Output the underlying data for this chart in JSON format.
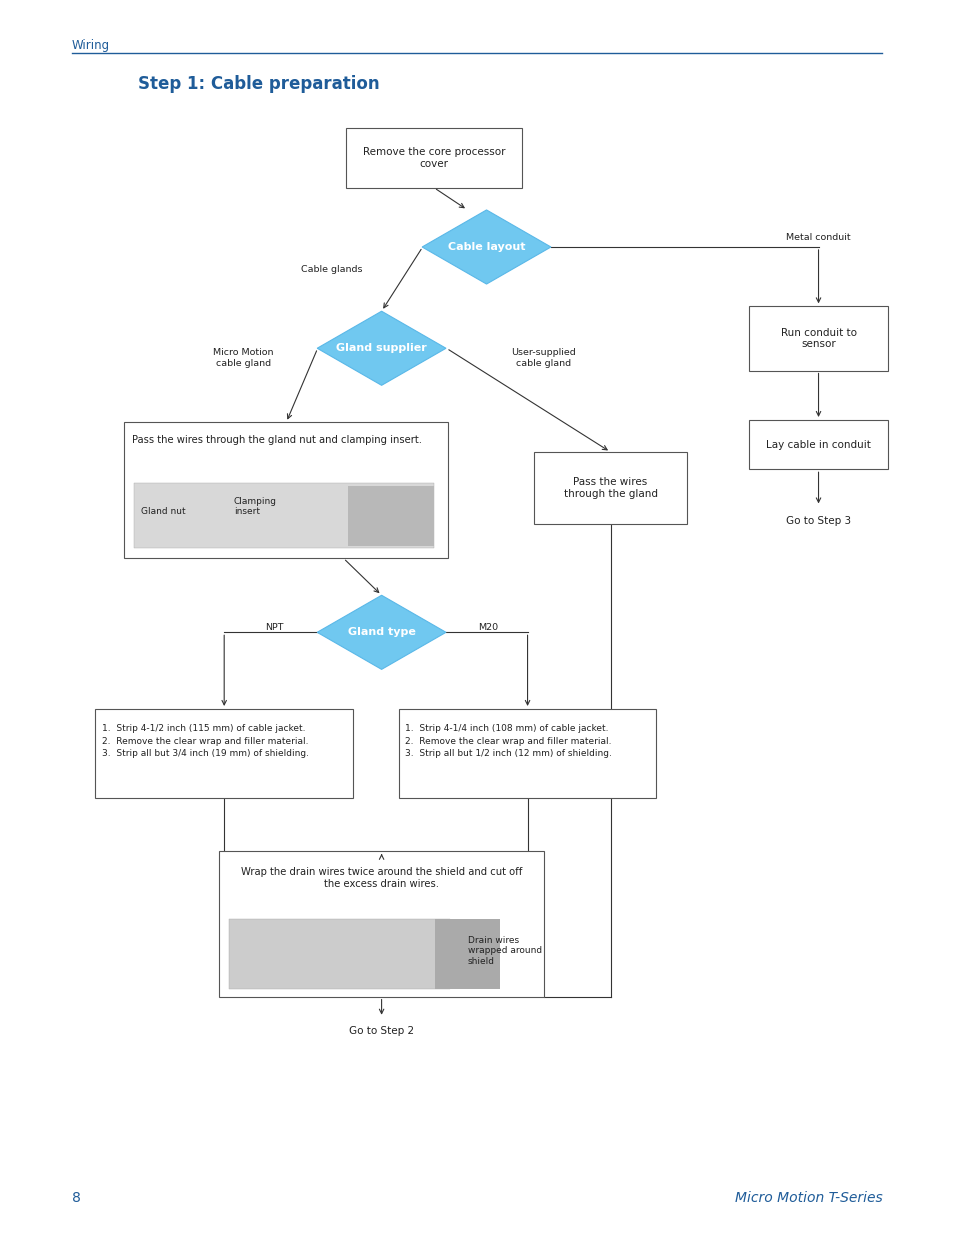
{
  "page_title": "Wiring",
  "section_title": "Step 1: Cable preparation",
  "section_title_color": "#1F5C99",
  "header_line_color": "#1F5C99",
  "diamond_fill": "#70C8F0",
  "box_fill": "white",
  "box_edge": "#555555",
  "arrow_color": "#333333",
  "text_color": "#222222",
  "blue_text_color": "#1F5C99",
  "page_number": "8",
  "footer_right": "Micro Motion T-Series",
  "background_color": "white"
}
